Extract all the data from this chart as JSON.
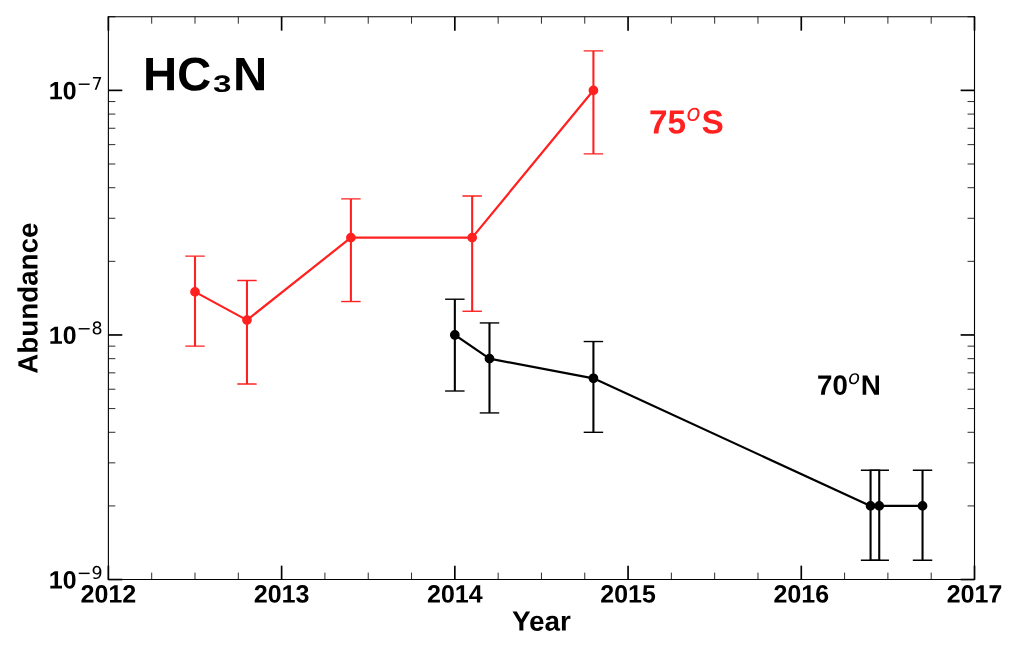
{
  "chart_data": {
    "type": "line",
    "title": "HC₃N",
    "xlabel": "Year",
    "ylabel": "Abundance",
    "log": "y",
    "grid": false,
    "marker": "circle",
    "line_style": "solid",
    "xlim": [
      2012,
      2017
    ],
    "xticks": [
      2012,
      2013,
      2014,
      2015,
      2016,
      2017
    ],
    "ylim": [
      1e-09,
      2e-07
    ],
    "yticks": [
      {
        "value": 1e-09,
        "label": "10$^{−9}$"
      },
      {
        "value": 1e-08,
        "label": "10$^{−8}$"
      },
      {
        "value": 1e-07,
        "label": "10$^{−7}$"
      }
    ],
    "series": [
      {
        "name": "75$^{o}$S",
        "color": "#ff2020",
        "x": [
          2012.5,
          2012.8,
          2013.4,
          2014.1,
          2014.8
        ],
        "values": [
          1.5e-08,
          1.15e-08,
          2.5e-08,
          2.5e-08,
          1e-07
        ],
        "errors": [
          [
            9e-09,
            2.1e-08
          ],
          [
            6.3e-09,
            1.67e-08
          ],
          [
            1.37e-08,
            3.6e-08
          ],
          [
            1.25e-08,
            3.7e-08
          ],
          [
            5.5e-08,
            1.45e-07
          ]
        ]
      },
      {
        "name": "70$^{o}$N",
        "color": "#000000",
        "x": [
          2014.0,
          2014.2,
          2014.8,
          2016.4,
          2016.45,
          2016.7
        ],
        "values": [
          1e-08,
          8e-09,
          6.65e-09,
          2e-09,
          2e-09,
          2e-09
        ],
        "errors": [
          [
            5.9e-09,
            1.4e-08
          ],
          [
            4.8e-09,
            1.12e-08
          ],
          [
            4e-09,
            9.4e-09
          ],
          [
            1.2e-09,
            2.8e-09
          ],
          [
            1.2e-09,
            2.8e-09
          ],
          [
            1.2e-09,
            2.8e-09
          ]
        ]
      }
    ]
  }
}
